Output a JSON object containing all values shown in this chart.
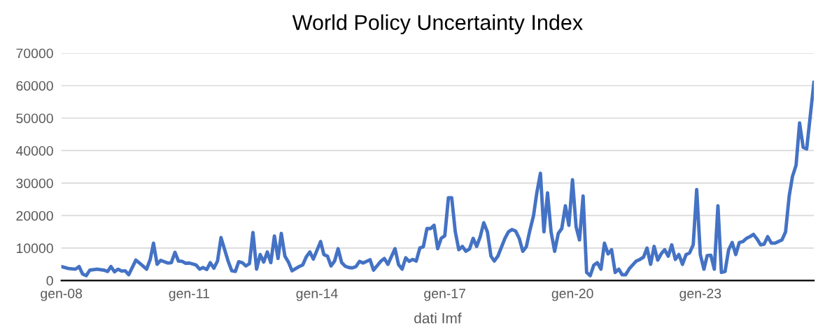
{
  "chart_data": {
    "type": "line",
    "title": "World Policy Uncertainty Index",
    "xlabel": "dati Imf",
    "x": [
      "2008-01",
      "2008-03",
      "2008-05",
      "2008-06",
      "2008-07",
      "2008-08",
      "2008-09",
      "2008-11",
      "2009-01",
      "2009-02",
      "2009-03",
      "2009-04",
      "2009-05",
      "2009-06",
      "2009-07",
      "2009-08",
      "2009-10",
      "2009-11",
      "2010-01",
      "2010-02",
      "2010-03",
      "2010-04",
      "2010-05",
      "2010-07",
      "2010-08",
      "2010-09",
      "2010-10",
      "2010-11",
      "2010-12",
      "2011-01",
      "2011-03",
      "2011-04",
      "2011-05",
      "2011-06",
      "2011-07",
      "2011-08",
      "2011-09",
      "2011-10",
      "2011-12",
      "2012-01",
      "2012-02",
      "2012-03",
      "2012-04",
      "2012-05",
      "2012-06",
      "2012-07",
      "2012-08",
      "2012-09",
      "2012-10",
      "2012-11",
      "2012-12",
      "2013-01",
      "2013-02",
      "2013-03",
      "2013-04",
      "2013-05",
      "2013-06",
      "2013-08",
      "2013-09",
      "2013-10",
      "2013-11",
      "2013-12",
      "2014-02",
      "2014-03",
      "2014-04",
      "2014-05",
      "2014-06",
      "2014-07",
      "2014-08",
      "2014-09",
      "2014-10",
      "2014-11",
      "2014-12",
      "2015-01",
      "2015-02",
      "2015-04",
      "2015-05",
      "2015-07",
      "2015-08",
      "2015-09",
      "2015-11",
      "2015-12",
      "2016-01",
      "2016-02",
      "2016-03",
      "2016-04",
      "2016-05",
      "2016-06",
      "2016-07",
      "2016-08",
      "2016-09",
      "2016-10",
      "2016-11",
      "2016-12",
      "2017-01",
      "2017-02",
      "2017-03",
      "2017-04",
      "2017-05",
      "2017-06",
      "2017-07",
      "2017-08",
      "2017-09",
      "2017-10",
      "2017-11",
      "2017-12",
      "2018-01",
      "2018-02",
      "2018-03",
      "2018-04",
      "2018-06",
      "2018-07",
      "2018-08",
      "2018-09",
      "2018-10",
      "2018-11",
      "2018-12",
      "2019-01",
      "2019-02",
      "2019-03",
      "2019-04",
      "2019-05",
      "2019-06",
      "2019-07",
      "2019-08",
      "2019-09",
      "2019-10",
      "2019-11",
      "2019-12",
      "2020-01",
      "2020-02",
      "2020-03",
      "2020-04",
      "2020-05",
      "2020-06",
      "2020-07",
      "2020-08",
      "2020-09",
      "2020-10",
      "2020-11",
      "2020-12",
      "2021-01",
      "2021-02",
      "2021-03",
      "2021-04",
      "2021-05",
      "2021-07",
      "2021-08",
      "2021-09",
      "2021-10",
      "2021-11",
      "2021-12",
      "2022-01",
      "2022-02",
      "2022-03",
      "2022-04",
      "2022-05",
      "2022-06",
      "2022-07",
      "2022-08",
      "2022-09",
      "2022-10",
      "2022-11",
      "2022-12",
      "2023-01",
      "2023-02",
      "2023-03",
      "2023-04",
      "2023-05",
      "2023-06",
      "2023-07",
      "2023-08",
      "2023-09",
      "2023-10",
      "2023-11",
      "2023-12",
      "2024-01",
      "2024-02",
      "2024-03",
      "2024-04",
      "2024-05",
      "2024-06",
      "2024-07",
      "2024-08",
      "2024-09",
      "2024-10",
      "2024-12",
      "2025-01",
      "2025-02",
      "2025-03",
      "2025-04",
      "2025-05",
      "2025-06",
      "2025-07",
      "2025-09"
    ],
    "series": [
      {
        "color": "#4472c4",
        "values": [
          4300,
          3700,
          3500,
          4300,
          2000,
          1500,
          3200,
          3500,
          3200,
          2800,
          4300,
          2700,
          3500,
          2900,
          3000,
          1800,
          6300,
          5400,
          3500,
          6500,
          11500,
          5000,
          6200,
          5400,
          5500,
          8700,
          6000,
          5900,
          5300,
          5400,
          4800,
          3500,
          4000,
          3400,
          5500,
          3800,
          6000,
          13200,
          6000,
          3000,
          2800,
          5800,
          5500,
          4500,
          5200,
          14800,
          3500,
          8000,
          5700,
          8800,
          5500,
          13700,
          6800,
          14500,
          7500,
          5700,
          3000,
          4300,
          4800,
          7300,
          8800,
          6600,
          12000,
          8000,
          7500,
          4500,
          6000,
          9800,
          5500,
          4400,
          4000,
          3900,
          4300,
          5900,
          5400,
          6400,
          3200,
          5900,
          6800,
          5000,
          9800,
          4900,
          3500,
          7000,
          5900,
          6500,
          6000,
          10000,
          10400,
          16000,
          16000,
          17000,
          9800,
          13000,
          13800,
          25500,
          25500,
          15000,
          9500,
          10500,
          9000,
          9700,
          13000,
          10500,
          13500,
          17800,
          15000,
          7500,
          6000,
          7500,
          13000,
          15000,
          15700,
          15200,
          13000,
          9000,
          10400,
          15500,
          20000,
          27000,
          33000,
          15000,
          27000,
          15000,
          9000,
          14500,
          16000,
          23000,
          17000,
          31000,
          16500,
          12500,
          26000,
          2500,
          1500,
          4700,
          5500,
          3500,
          11500,
          8200,
          9500,
          2500,
          3500,
          1800,
          1800,
          3600,
          6000,
          6500,
          7200,
          10000,
          5000,
          10500,
          6300,
          8300,
          9500,
          7500,
          11000,
          6500,
          8000,
          5000,
          8000,
          8500,
          11000,
          28000,
          8000,
          3500,
          7700,
          7800,
          3500,
          23000,
          2500,
          2800,
          9500,
          11700,
          8000,
          11700,
          12000,
          13000,
          13500,
          14200,
          12800,
          11000,
          11200,
          13500,
          11500,
          11500,
          12500,
          15000,
          26000,
          32000,
          35500,
          48500,
          41000,
          40500,
          61000
        ]
      }
    ],
    "xlim": [
      "2008-01",
      "2025-09"
    ],
    "xticks": [
      {
        "value": "2008-01",
        "label": "gen-08"
      },
      {
        "value": "2011-01",
        "label": "gen-11"
      },
      {
        "value": "2014-01",
        "label": "gen-14"
      },
      {
        "value": "2017-01",
        "label": "gen-17"
      },
      {
        "value": "2020-01",
        "label": "gen-20"
      },
      {
        "value": "2023-01",
        "label": "gen-23"
      }
    ],
    "ylim": [
      0,
      70000
    ],
    "yticks": [
      0,
      10000,
      20000,
      30000,
      40000,
      50000,
      60000,
      70000
    ],
    "grid": "y",
    "marker": "none",
    "line_style": "solid"
  }
}
